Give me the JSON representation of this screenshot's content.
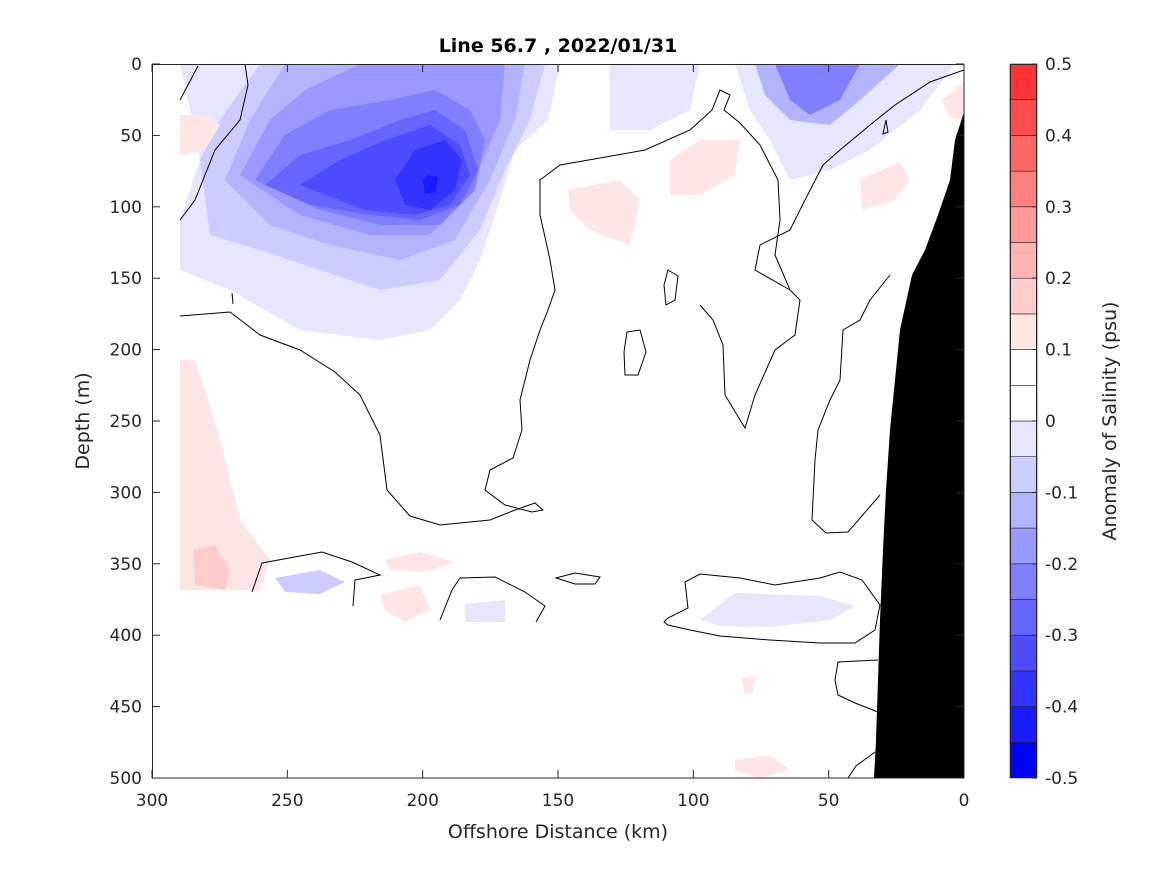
{
  "chart_data": {
    "type": "heatmap",
    "subtype": "filled contour section",
    "title": "Line 56.7 , 2022/01/31",
    "xlabel": "Offshore Distance (km)",
    "ylabel": "Depth (m)",
    "xlim": [
      300,
      0
    ],
    "ylim": [
      500,
      0
    ],
    "x_reversed": true,
    "y_reversed": true,
    "xticks": [
      300,
      250,
      200,
      150,
      100,
      50,
      0
    ],
    "yticks": [
      0,
      50,
      100,
      150,
      200,
      250,
      300,
      350,
      400,
      450,
      500
    ],
    "colorbar": {
      "label": "Anomaly of Salinity (psu)",
      "range": [
        -0.5,
        0.5
      ],
      "levels": [
        -0.5,
        -0.45,
        -0.4,
        -0.35,
        -0.3,
        -0.25,
        -0.2,
        -0.15,
        -0.1,
        -0.05,
        0,
        0.05,
        0.1,
        0.15,
        0.2,
        0.25,
        0.3,
        0.35,
        0.4,
        0.45,
        0.5
      ],
      "ticks": [
        0.5,
        0.4,
        0.3,
        0.2,
        0.1,
        0,
        -0.1,
        -0.2,
        -0.3,
        -0.4,
        -0.5
      ],
      "colors": [
        "#0000ff",
        "#1a1aff",
        "#3333ff",
        "#4d4dff",
        "#6666ff",
        "#8080ff",
        "#9999ff",
        "#b3b3ff",
        "#ccccff",
        "#e6e6ff",
        "#ffffff",
        "#ffffff",
        "#ffe6e6",
        "#ffcccc",
        "#ffb3b3",
        "#ff9999",
        "#ff8080",
        "#ff6666",
        "#ff4d4d",
        "#ff3333",
        "#ff1a1a",
        "#ff0000"
      ]
    },
    "features": [
      {
        "label": "fresh core",
        "distance_km": 197,
        "depth_m": 85,
        "anomaly": -0.35
      },
      {
        "label": "fresh lobe west",
        "distance_km": 245,
        "depth_m": 90,
        "anomaly": -0.25
      },
      {
        "label": "fresh lobe nearshore",
        "distance_km": 65,
        "depth_m": 20,
        "anomaly": -0.2
      },
      {
        "label": "salty patch",
        "distance_km": 88,
        "depth_m": 90,
        "anomaly": 0.08
      },
      {
        "label": "salty patch",
        "distance_km": 138,
        "depth_m": 100,
        "anomaly": 0.08
      },
      {
        "label": "salty patch",
        "distance_km": 281,
        "depth_m": 360,
        "anomaly": 0.15
      },
      {
        "label": "salty band west",
        "distance_km": 280,
        "depth_m": 270,
        "anomaly": 0.08
      },
      {
        "label": "fresh patch",
        "distance_km": 235,
        "depth_m": 370,
        "anomaly": -0.12
      },
      {
        "label": "fresh patch",
        "distance_km": 70,
        "depth_m": 385,
        "anomaly": -0.1
      }
    ],
    "mask": {
      "label": "bathymetry",
      "color": "#000000"
    }
  }
}
